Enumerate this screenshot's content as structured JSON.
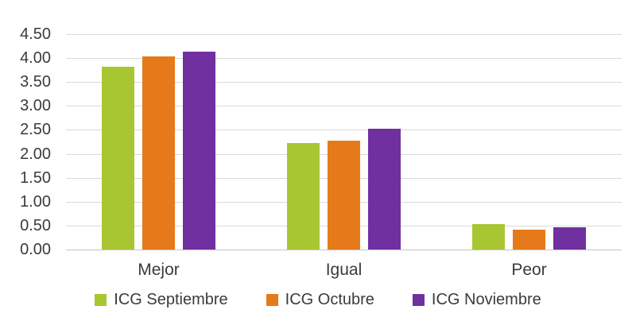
{
  "chart_data": {
    "type": "bar",
    "title": "",
    "xlabel": "",
    "ylabel": "",
    "categories": [
      "Mejor",
      "Igual",
      "Peor"
    ],
    "series": [
      {
        "name": "ICG Septiembre",
        "color": "#A8C632",
        "values": [
          3.82,
          2.22,
          0.53
        ]
      },
      {
        "name": "ICG Octubre",
        "color": "#E67A1A",
        "values": [
          4.04,
          2.28,
          0.41
        ]
      },
      {
        "name": "ICG Noviembre",
        "color": "#7030A0",
        "values": [
          4.13,
          2.52,
          0.47
        ]
      }
    ],
    "ylim": [
      0,
      4.5
    ],
    "ytick_step": 0.5,
    "ytick_labels": [
      "0.00",
      "0.50",
      "1.00",
      "1.50",
      "2.00",
      "2.50",
      "3.00",
      "3.50",
      "4.00",
      "4.50"
    ],
    "grid": true,
    "legend_position": "bottom"
  },
  "colors": {
    "background": "#FFFFFF",
    "gridline": "#D9D9D9",
    "axis_line": "#C6C6C6",
    "text": "#3B3B3B"
  }
}
